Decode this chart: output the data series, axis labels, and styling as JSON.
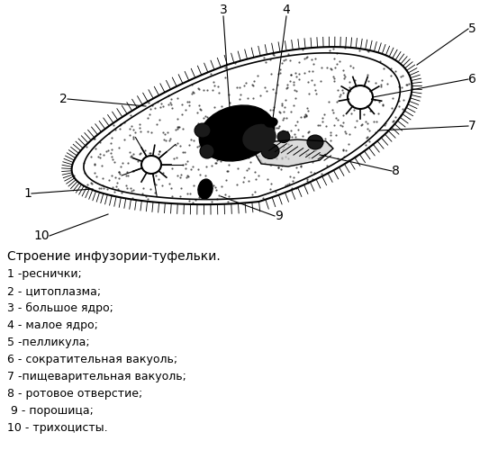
{
  "title": "Строение инфузории-туфельки.",
  "legend_lines": [
    "1 -реснички;",
    "2 - цитоплазма;",
    "3 - большое ядро;",
    "4 - малое ядро;",
    "5 -пелликула;",
    "6 - сократительная вакуоль;",
    "7 -пищеварительная вакуоль;",
    "8 - ротовое отверстие;",
    " 9 - порошица;",
    "10 - трихоцисты."
  ],
  "bg_color": "#ffffff",
  "text_color": "#000000",
  "label_fontsize": 9.0,
  "title_fontsize": 10.0
}
